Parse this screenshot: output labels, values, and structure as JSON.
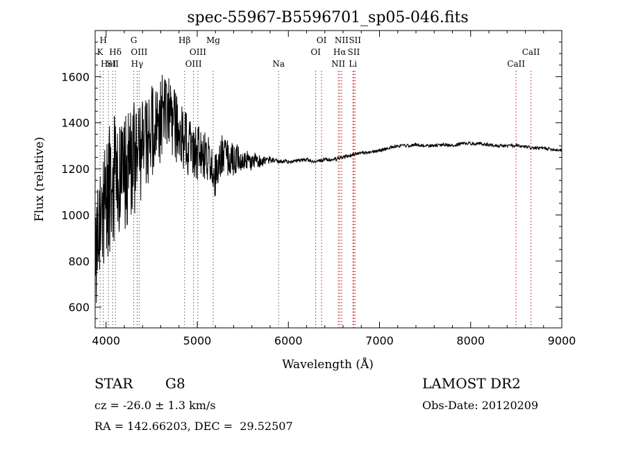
{
  "chart_data": {
    "type": "line",
    "title": "spec-55967-B5596701_sp05-046.fits",
    "xlabel": "Wavelength (Å)",
    "ylabel": "Flux (relative)",
    "xlim": [
      3880,
      9000
    ],
    "ylim": [
      510,
      1800
    ],
    "xticks": [
      4000,
      5000,
      6000,
      7000,
      8000,
      9000
    ],
    "yticks": [
      600,
      800,
      1000,
      1200,
      1400,
      1600
    ],
    "grid": false,
    "series": [
      {
        "color": "#000000",
        "noise_seed": 55967,
        "x": [
          3880,
          3920,
          3960,
          4000,
          4040,
          4080,
          4120,
          4160,
          4200,
          4250,
          4300,
          4350,
          4400,
          4450,
          4500,
          4550,
          4600,
          4650,
          4700,
          4750,
          4800,
          4850,
          4900,
          4950,
          5000,
          5050,
          5100,
          5150,
          5200,
          5250,
          5300,
          5350,
          5400,
          5450,
          5500,
          5550,
          5600,
          5650,
          5700,
          5750,
          5800,
          5850,
          5900,
          5950,
          6000,
          6100,
          6200,
          6300,
          6400,
          6500,
          6600,
          6700,
          6800,
          6900,
          7000,
          7100,
          7200,
          7300,
          7400,
          7500,
          7600,
          7700,
          7800,
          7900,
          8000,
          8100,
          8200,
          8300,
          8400,
          8500,
          8600,
          8700,
          8800,
          8900,
          9000
        ],
        "values": [
          800,
          900,
          1000,
          1050,
          1100,
          1150,
          1150,
          1200,
          1180,
          1200,
          1220,
          1250,
          1300,
          1330,
          1350,
          1380,
          1420,
          1450,
          1430,
          1400,
          1350,
          1320,
          1300,
          1280,
          1270,
          1260,
          1250,
          1230,
          1150,
          1250,
          1260,
          1250,
          1240,
          1250,
          1230,
          1240,
          1230,
          1240,
          1230,
          1235,
          1240,
          1240,
          1230,
          1235,
          1230,
          1235,
          1240,
          1230,
          1240,
          1240,
          1250,
          1260,
          1270,
          1270,
          1280,
          1290,
          1300,
          1300,
          1305,
          1300,
          1300,
          1305,
          1300,
          1310,
          1310,
          1310,
          1305,
          1300,
          1300,
          1300,
          1295,
          1290,
          1290,
          1285,
          1280
        ],
        "noise_amp": [
          260,
          280,
          300,
          300,
          290,
          280,
          280,
          260,
          250,
          260,
          270,
          260,
          250,
          230,
          210,
          200,
          190,
          170,
          160,
          150,
          150,
          140,
          130,
          120,
          120,
          120,
          110,
          110,
          110,
          100,
          90,
          80,
          70,
          60,
          50,
          40,
          35,
          30,
          25,
          20,
          15,
          12,
          10,
          10,
          8,
          8,
          8,
          8,
          8,
          8,
          8,
          7,
          7,
          7,
          7,
          7,
          7,
          7,
          7,
          7,
          7,
          7,
          7,
          7,
          7,
          7,
          7,
          7,
          7,
          7,
          7,
          7,
          7,
          7,
          7
        ]
      }
    ],
    "line_marks": [
      {
        "x": 3934,
        "label": "K",
        "row": 1,
        "style": "dotted"
      },
      {
        "x": 3969,
        "label": "H",
        "row": 0,
        "style": "dotted"
      },
      {
        "x": 4026,
        "label": "HeI",
        "row": 2,
        "style": "dotted"
      },
      {
        "x": 4072,
        "label": "SII",
        "row": 2,
        "style": "dotted"
      },
      {
        "x": 4102,
        "label": "Hδ",
        "row": 1,
        "style": "dotted"
      },
      {
        "x": 4304,
        "label": "G",
        "row": 0,
        "style": "dotted"
      },
      {
        "x": 4341,
        "label": "Hγ",
        "row": 2,
        "style": "dotted"
      },
      {
        "x": 4363,
        "label": "OIII",
        "row": 1,
        "style": "dotted"
      },
      {
        "x": 4861,
        "label": "Hβ",
        "row": 0,
        "style": "dotted"
      },
      {
        "x": 4959,
        "label": "OIII",
        "row": 2,
        "style": "dotted"
      },
      {
        "x": 5007,
        "label": "OIII",
        "row": 1,
        "style": "dotted"
      },
      {
        "x": 5175,
        "label": "Mg",
        "row": 0,
        "style": "dotted"
      },
      {
        "x": 5893,
        "label": "Na",
        "row": 2,
        "style": "dotted"
      },
      {
        "x": 6300,
        "label": "OI",
        "row": 1,
        "style": "red"
      },
      {
        "x": 6364,
        "label": "OI",
        "row": 0,
        "style": "red"
      },
      {
        "x": 6548,
        "label": "NII",
        "row": 2,
        "style": "red"
      },
      {
        "x": 6563,
        "label": "Hα",
        "row": 1,
        "style": "red"
      },
      {
        "x": 6584,
        "label": "NII",
        "row": 0,
        "style": "red"
      },
      {
        "x": 6708,
        "label": "Li",
        "row": 2,
        "style": "red"
      },
      {
        "x": 6717,
        "label": "SII",
        "row": 1,
        "style": "red"
      },
      {
        "x": 6731,
        "label": "SII",
        "row": 0,
        "style": "red"
      },
      {
        "x": 8498,
        "label": "CaII",
        "row": 2,
        "style": "red"
      },
      {
        "x": 8662,
        "label": "CaII",
        "row": 1,
        "style": "red"
      }
    ]
  },
  "info": {
    "class_label": "STAR",
    "subclass": "G8",
    "survey": "LAMOST DR2",
    "redshift": "cz = -26.0 ± 1.3 km/s",
    "obs_date": "Obs-Date: 20120209",
    "coords": "RA = 142.66203, DEC =  29.52507"
  }
}
